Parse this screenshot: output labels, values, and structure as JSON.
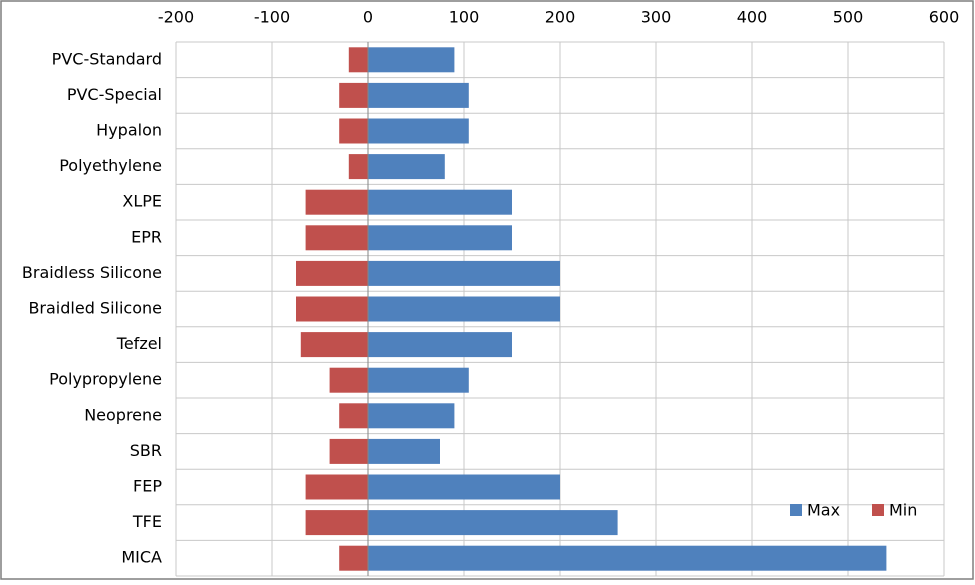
{
  "chart_data": {
    "type": "bar",
    "orientation": "horizontal",
    "categories": [
      "PVC-Standard",
      "PVC-Special",
      "Hypalon",
      "Polyethylene",
      "XLPE",
      "EPR",
      "Braidless Silicone",
      "Braidled Silicone",
      "Tefzel",
      "Polypropylene",
      "Neoprene",
      "SBR",
      "FEP",
      "TFE",
      "MICA"
    ],
    "series": [
      {
        "name": "Max",
        "color": "#4f81bd",
        "values": [
          90,
          105,
          105,
          80,
          150,
          150,
          200,
          200,
          150,
          105,
          90,
          75,
          200,
          260,
          540
        ]
      },
      {
        "name": "Min",
        "color": "#c0504d",
        "values": [
          -20,
          -30,
          -30,
          -20,
          -65,
          -65,
          -75,
          -75,
          -70,
          -40,
          -30,
          -40,
          -65,
          -65,
          -30
        ]
      }
    ],
    "xlim": [
      -200,
      600
    ],
    "xticks": [
      -200,
      -100,
      0,
      100,
      200,
      300,
      400,
      500,
      600
    ],
    "grid": true,
    "legend": "lower right"
  }
}
